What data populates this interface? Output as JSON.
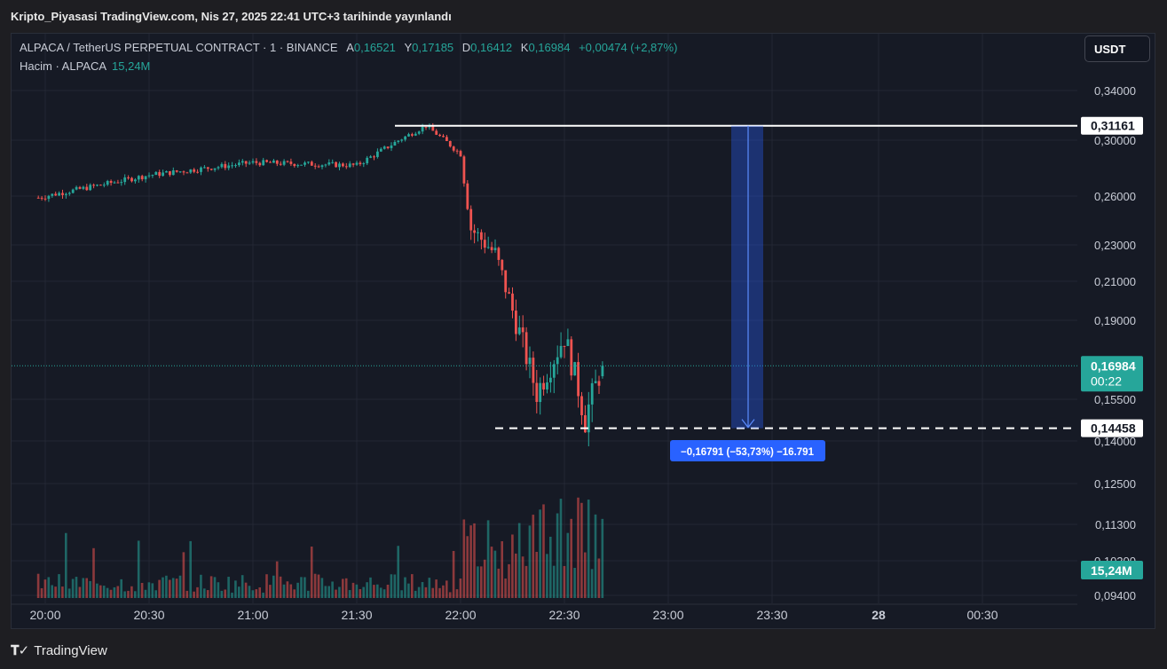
{
  "header": {
    "published": "Kripto_Piyasasi TradingView.com, Nis 27, 2025 22:41 UTC+3 tarihinde yayınlandı"
  },
  "legend": {
    "symbol": "ALPACA / TetherUS PERPETUAL CONTRACT · 1 · BINANCE",
    "open_label": "A",
    "open": "0,16521",
    "high_label": "Y",
    "high": "0,17185",
    "low_label": "D",
    "low": "0,16412",
    "close_label": "K",
    "close": "0,16984",
    "change": "+0,00474 (+2,87%)",
    "volume_label": "Hacim · ALPACA",
    "volume": "15,24M"
  },
  "currency_button": "USDT",
  "footer": {
    "logo": "TradingView"
  },
  "colors": {
    "up": "#26a69a",
    "down": "#ef5350",
    "measure": "#2962ff",
    "bg": "#161a25"
  },
  "chart_data": {
    "type": "candlestick",
    "y_ticks": [
      "0,34000",
      "0,30000",
      "0,26000",
      "0,23000",
      "0,21000",
      "0,19000",
      "0,15500",
      "0,14000",
      "0,12500",
      "0,11300",
      "0,10200",
      "0,09400"
    ],
    "y_tick_values": [
      0.34,
      0.3,
      0.26,
      0.23,
      0.21,
      0.19,
      0.155,
      0.14,
      0.125,
      0.113,
      0.102,
      0.094
    ],
    "x_ticks": [
      "20:00",
      "20:30",
      "21:00",
      "21:30",
      "22:00",
      "22:30",
      "23:00",
      "23:30",
      "28",
      "00:30"
    ],
    "price_labels": {
      "top_line": "0,31161",
      "current": "0,16984",
      "countdown": "00:22",
      "bottom_line": "0,14458",
      "volume": "15,24M"
    },
    "measure_label": "−0,16791 (−53,73%) −16.791",
    "key_points": [
      {
        "time": "19:58",
        "price": 0.259
      },
      {
        "time": "20:30",
        "price": 0.275
      },
      {
        "time": "21:00",
        "price": 0.284
      },
      {
        "time": "21:30",
        "price": 0.282
      },
      {
        "time": "21:50",
        "price": 0.3116
      },
      {
        "time": "22:00",
        "price": 0.29
      },
      {
        "time": "22:03",
        "price": 0.24
      },
      {
        "time": "22:10",
        "price": 0.225
      },
      {
        "time": "22:15",
        "price": 0.195
      },
      {
        "time": "22:22",
        "price": 0.158
      },
      {
        "time": "22:30",
        "price": 0.183
      },
      {
        "time": "22:36",
        "price": 0.148
      },
      {
        "time": "22:41",
        "price": 0.1698
      }
    ]
  }
}
